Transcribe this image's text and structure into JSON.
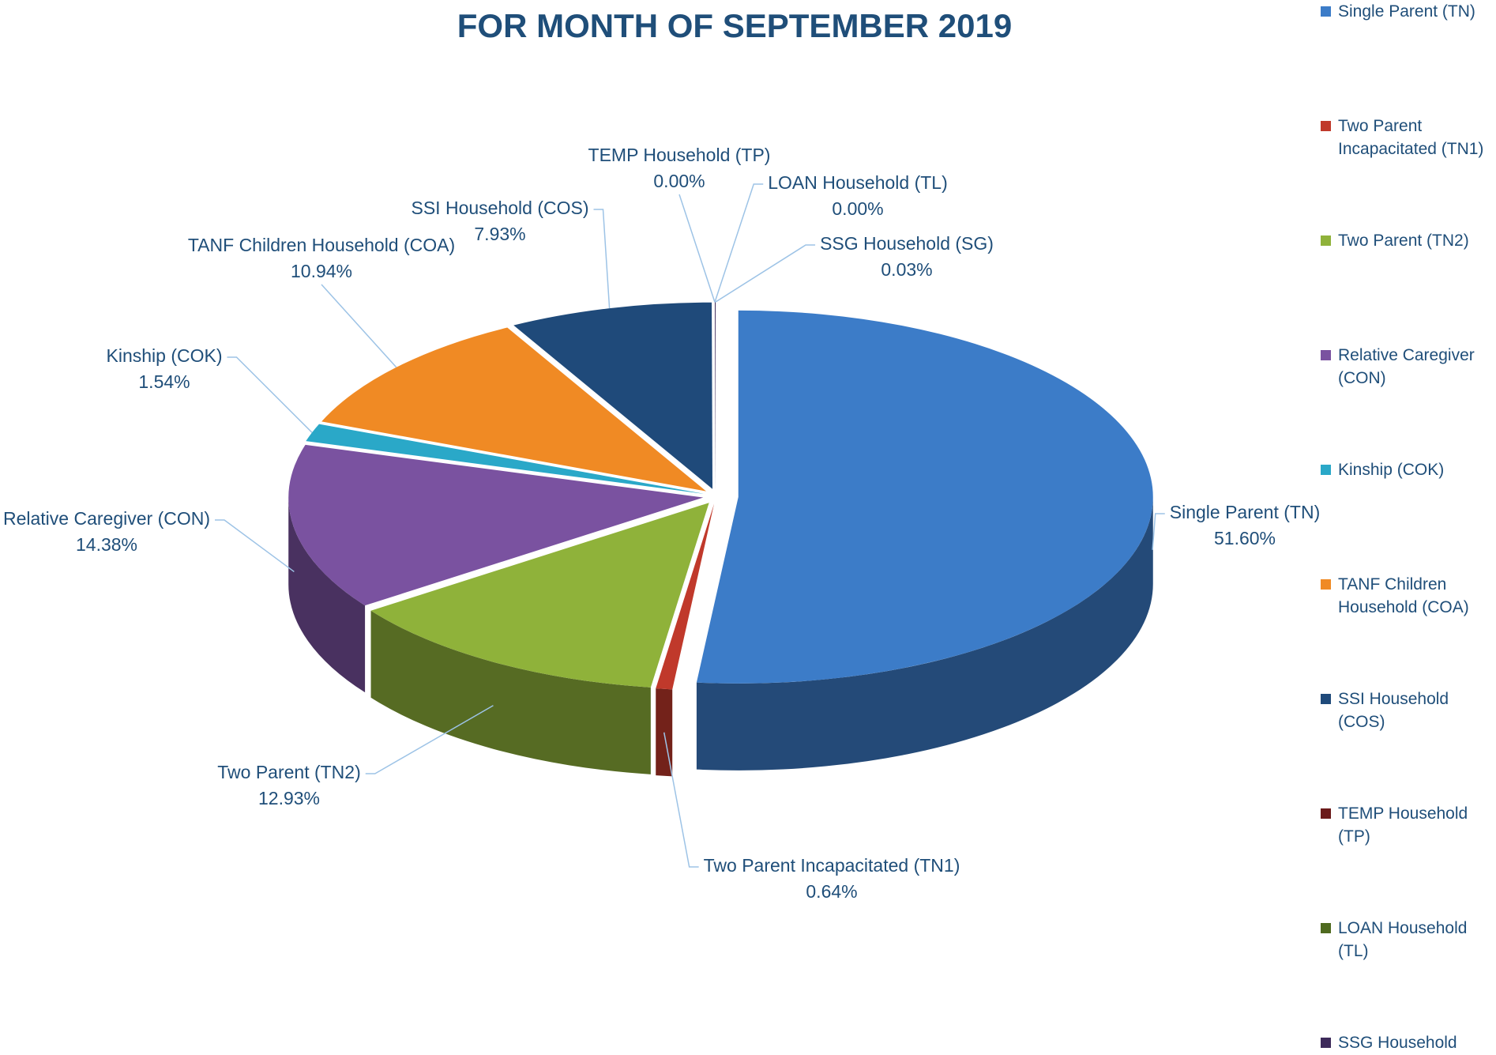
{
  "chart_data": {
    "type": "pie3d",
    "title": "FOR MONTH OF SEPTEMBER 2019",
    "categories": [
      "Single Parent (TN)",
      "Two Parent Incapacitated (TN1)",
      "Two Parent (TN2)",
      "Relative Caregiver (CON)",
      "Kinship (COK)",
      "TANF Children Household (COA)",
      "SSI Household (COS)",
      "TEMP Household (TP)",
      "LOAN Household (TL)",
      "SSG Household (SG)"
    ],
    "values": [
      51.6,
      0.64,
      12.93,
      14.38,
      1.54,
      10.94,
      7.93,
      0,
      0,
      0.03
    ],
    "value_labels": [
      "51.60%",
      "0.64%",
      "12.93%",
      "14.38%",
      "1.54%",
      "10.94%",
      "7.93%",
      "0.00%",
      "0.00%",
      "0.03%"
    ],
    "colors": [
      "#3c7cc8",
      "#c0392b",
      "#8fb23a",
      "#7a52a0",
      "#2aa8c8",
      "#f08a24",
      "#1f4a7a",
      "#6b1a1a",
      "#4f6a1f",
      "#3d2a5a"
    ],
    "legend": "right"
  }
}
